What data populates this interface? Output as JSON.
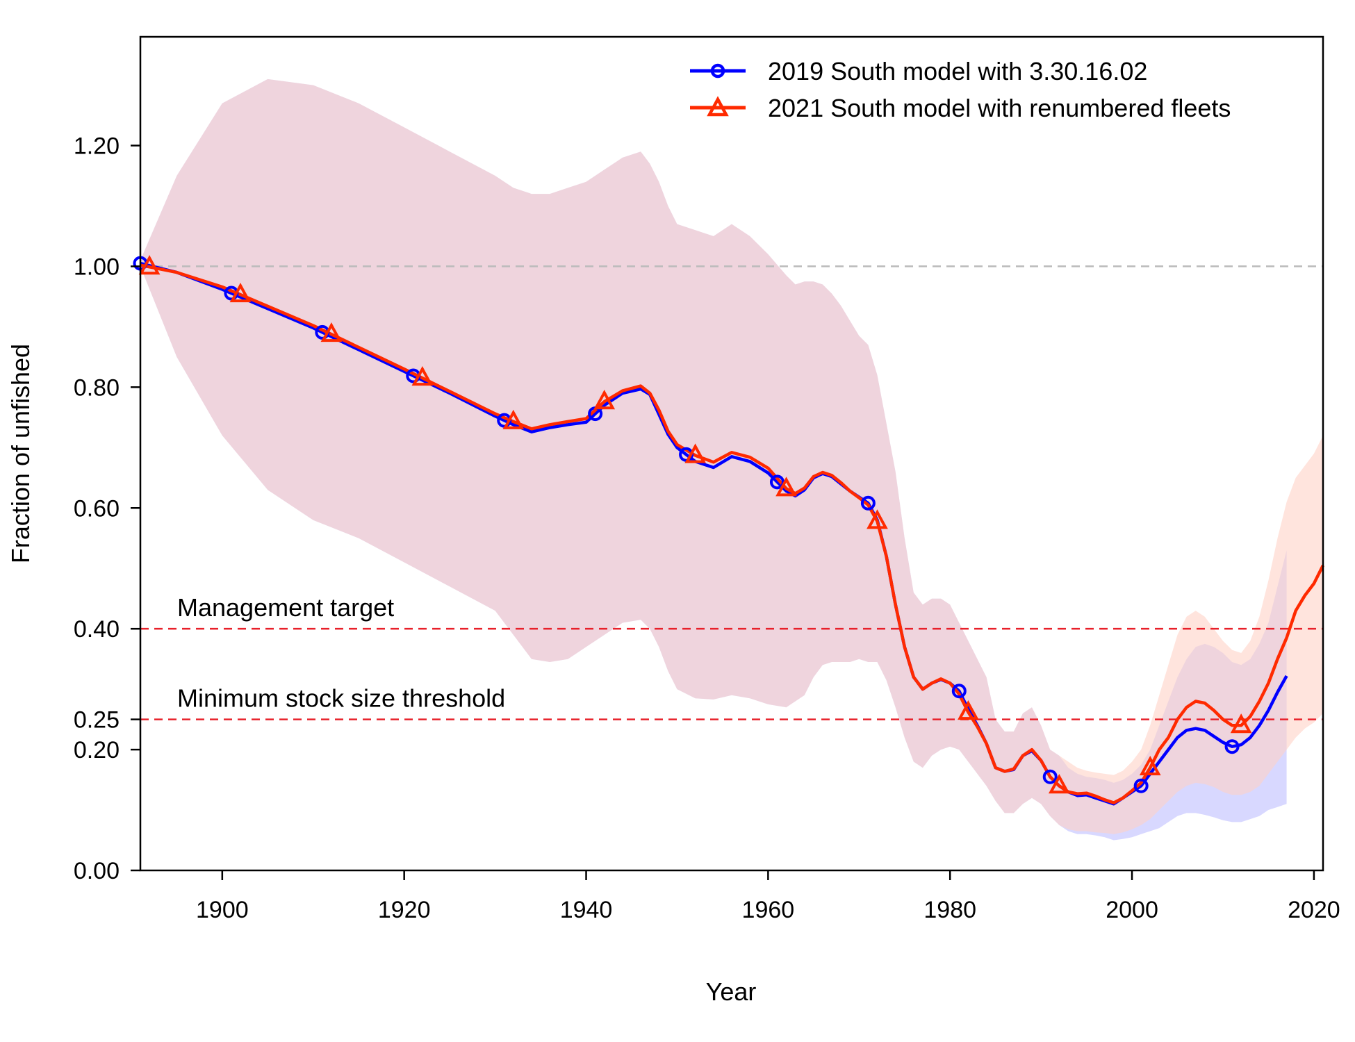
{
  "chart_data": {
    "type": "line",
    "xlabel": "Year",
    "ylabel": "Fraction of unfished",
    "xlim": [
      1891,
      2021
    ],
    "ylim": [
      0,
      1.38
    ],
    "x_ticks": [
      1900,
      1920,
      1940,
      1960,
      1980,
      2000,
      2020
    ],
    "y_ticks": [
      0.0,
      0.2,
      0.25,
      0.4,
      0.6,
      0.8,
      1.0,
      1.2
    ],
    "y_tick_labels": [
      "0.00",
      "0.20",
      "0.25",
      "0.40",
      "0.60",
      "0.80",
      "1.00",
      "1.20"
    ],
    "legend_position": "top-right",
    "grid": false,
    "reference_lines": [
      {
        "y": 1.0,
        "color": "#bbbbbb",
        "style": "dashed",
        "label": ""
      },
      {
        "y": 0.4,
        "color": "#e8202a",
        "style": "dashed",
        "label": "Management target"
      },
      {
        "y": 0.25,
        "color": "#e8202a",
        "style": "dashed",
        "label": "Minimum stock size threshold"
      }
    ],
    "series": [
      {
        "name": "2019 South model with 3.30.16.02",
        "color": "#0000ff",
        "band_color": "#b8b8ff",
        "marker": "circle",
        "marker_years": [
          1891,
          1901,
          1911,
          1921,
          1931,
          1941,
          1951,
          1961,
          1971,
          1981,
          1991,
          2001,
          2011
        ],
        "x": [
          1891,
          1895,
          1900,
          1905,
          1910,
          1915,
          1920,
          1925,
          1930,
          1932,
          1934,
          1936,
          1938,
          1940,
          1942,
          1944,
          1946,
          1947,
          1948,
          1949,
          1950,
          1952,
          1954,
          1956,
          1958,
          1960,
          1962,
          1963,
          1964,
          1965,
          1966,
          1967,
          1968,
          1969,
          1970,
          1971,
          1972,
          1973,
          1974,
          1975,
          1976,
          1977,
          1978,
          1979,
          1980,
          1981,
          1982,
          1983,
          1984,
          1985,
          1986,
          1987,
          1988,
          1989,
          1990,
          1991,
          1992,
          1993,
          1994,
          1995,
          1996,
          1997,
          1998,
          1999,
          2000,
          2001,
          2002,
          2003,
          2004,
          2005,
          2006,
          2007,
          2008,
          2009,
          2010,
          2011,
          2012,
          2013,
          2014,
          2015,
          2016,
          2017
        ],
        "y": [
          1.005,
          0.99,
          0.962,
          0.93,
          0.898,
          0.862,
          0.826,
          0.79,
          0.752,
          0.738,
          0.726,
          0.733,
          0.738,
          0.742,
          0.77,
          0.79,
          0.797,
          0.788,
          0.755,
          0.722,
          0.7,
          0.677,
          0.667,
          0.685,
          0.677,
          0.658,
          0.628,
          0.62,
          0.63,
          0.65,
          0.657,
          0.652,
          0.64,
          0.628,
          0.618,
          0.608,
          0.58,
          0.52,
          0.44,
          0.37,
          0.32,
          0.3,
          0.31,
          0.316,
          0.31,
          0.297,
          0.267,
          0.24,
          0.21,
          0.17,
          0.164,
          0.167,
          0.19,
          0.198,
          0.182,
          0.155,
          0.14,
          0.13,
          0.124,
          0.125,
          0.12,
          0.115,
          0.11,
          0.12,
          0.13,
          0.14,
          0.16,
          0.18,
          0.2,
          0.22,
          0.232,
          0.235,
          0.232,
          0.222,
          0.212,
          0.205,
          0.208,
          0.22,
          0.24,
          0.265,
          0.295,
          0.322
        ],
        "lower": [
          1.0,
          0.85,
          0.72,
          0.63,
          0.58,
          0.55,
          0.51,
          0.47,
          0.43,
          0.39,
          0.35,
          0.345,
          0.35,
          0.37,
          0.39,
          0.41,
          0.415,
          0.4,
          0.37,
          0.33,
          0.3,
          0.285,
          0.283,
          0.29,
          0.285,
          0.275,
          0.27,
          0.28,
          0.29,
          0.32,
          0.34,
          0.345,
          0.345,
          0.345,
          0.35,
          0.345,
          0.345,
          0.315,
          0.27,
          0.22,
          0.18,
          0.17,
          0.19,
          0.2,
          0.205,
          0.2,
          0.18,
          0.16,
          0.14,
          0.115,
          0.095,
          0.095,
          0.11,
          0.12,
          0.11,
          0.09,
          0.075,
          0.065,
          0.06,
          0.06,
          0.058,
          0.055,
          0.05,
          0.052,
          0.055,
          0.06,
          0.065,
          0.07,
          0.08,
          0.09,
          0.095,
          0.095,
          0.092,
          0.088,
          0.083,
          0.08,
          0.08,
          0.085,
          0.09,
          0.1,
          0.105,
          0.11
        ],
        "upper": [
          1.01,
          1.15,
          1.27,
          1.31,
          1.3,
          1.27,
          1.23,
          1.19,
          1.15,
          1.13,
          1.12,
          1.12,
          1.13,
          1.14,
          1.16,
          1.18,
          1.19,
          1.17,
          1.14,
          1.1,
          1.07,
          1.06,
          1.05,
          1.07,
          1.05,
          1.02,
          0.985,
          0.97,
          0.975,
          0.975,
          0.97,
          0.955,
          0.935,
          0.91,
          0.885,
          0.87,
          0.82,
          0.74,
          0.66,
          0.55,
          0.46,
          0.44,
          0.45,
          0.45,
          0.44,
          0.41,
          0.38,
          0.35,
          0.32,
          0.25,
          0.23,
          0.23,
          0.26,
          0.27,
          0.24,
          0.2,
          0.19,
          0.17,
          0.16,
          0.155,
          0.153,
          0.15,
          0.145,
          0.15,
          0.16,
          0.175,
          0.2,
          0.24,
          0.28,
          0.32,
          0.35,
          0.37,
          0.375,
          0.37,
          0.36,
          0.345,
          0.34,
          0.35,
          0.375,
          0.41,
          0.47,
          0.53
        ]
      },
      {
        "name": "2021 South model with renumbered fleets",
        "color": "#ff2a00",
        "band_color": "#ffd2c6",
        "marker": "triangle",
        "marker_years": [
          1892,
          1902,
          1912,
          1922,
          1932,
          1942,
          1952,
          1962,
          1972,
          1982,
          1992,
          2002,
          2012
        ],
        "x": [
          1891,
          1895,
          1900,
          1905,
          1910,
          1915,
          1920,
          1925,
          1930,
          1932,
          1934,
          1936,
          1938,
          1940,
          1942,
          1944,
          1946,
          1947,
          1948,
          1949,
          1950,
          1952,
          1954,
          1956,
          1958,
          1960,
          1962,
          1963,
          1964,
          1965,
          1966,
          1967,
          1968,
          1969,
          1970,
          1971,
          1972,
          1973,
          1974,
          1975,
          1976,
          1977,
          1978,
          1979,
          1980,
          1981,
          1982,
          1983,
          1984,
          1985,
          1986,
          1987,
          1988,
          1989,
          1990,
          1991,
          1992,
          1993,
          1994,
          1995,
          1996,
          1997,
          1998,
          1999,
          2000,
          2001,
          2002,
          2003,
          2004,
          2005,
          2006,
          2007,
          2008,
          2009,
          2010,
          2011,
          2012,
          2013,
          2014,
          2015,
          2016,
          2017,
          2018,
          2019,
          2020,
          2021
        ],
        "y": [
          1.002,
          0.99,
          0.966,
          0.934,
          0.902,
          0.866,
          0.83,
          0.793,
          0.756,
          0.743,
          0.731,
          0.738,
          0.743,
          0.748,
          0.776,
          0.794,
          0.802,
          0.79,
          0.762,
          0.727,
          0.705,
          0.687,
          0.676,
          0.692,
          0.684,
          0.666,
          0.632,
          0.624,
          0.633,
          0.652,
          0.659,
          0.654,
          0.642,
          0.628,
          0.617,
          0.605,
          0.578,
          0.52,
          0.44,
          0.37,
          0.32,
          0.3,
          0.31,
          0.317,
          0.31,
          0.292,
          0.262,
          0.238,
          0.21,
          0.17,
          0.164,
          0.168,
          0.19,
          0.2,
          0.182,
          0.155,
          0.14,
          0.13,
          0.127,
          0.128,
          0.123,
          0.117,
          0.112,
          0.12,
          0.132,
          0.145,
          0.17,
          0.2,
          0.22,
          0.25,
          0.27,
          0.28,
          0.277,
          0.265,
          0.25,
          0.24,
          0.24,
          0.255,
          0.28,
          0.31,
          0.35,
          0.385,
          0.43,
          0.455,
          0.475,
          0.505
        ],
        "lower": [
          1.0,
          0.85,
          0.72,
          0.63,
          0.58,
          0.55,
          0.51,
          0.47,
          0.43,
          0.39,
          0.35,
          0.345,
          0.35,
          0.37,
          0.39,
          0.41,
          0.415,
          0.4,
          0.37,
          0.33,
          0.3,
          0.285,
          0.283,
          0.29,
          0.285,
          0.275,
          0.27,
          0.28,
          0.29,
          0.32,
          0.34,
          0.345,
          0.345,
          0.345,
          0.35,
          0.345,
          0.345,
          0.315,
          0.27,
          0.22,
          0.18,
          0.17,
          0.19,
          0.2,
          0.205,
          0.2,
          0.18,
          0.16,
          0.14,
          0.115,
          0.095,
          0.095,
          0.11,
          0.12,
          0.11,
          0.09,
          0.075,
          0.068,
          0.065,
          0.065,
          0.063,
          0.062,
          0.06,
          0.063,
          0.068,
          0.075,
          0.085,
          0.1,
          0.115,
          0.13,
          0.14,
          0.145,
          0.143,
          0.138,
          0.13,
          0.125,
          0.125,
          0.13,
          0.14,
          0.16,
          0.18,
          0.2,
          0.22,
          0.235,
          0.245,
          0.26
        ],
        "upper": [
          1.01,
          1.15,
          1.27,
          1.31,
          1.3,
          1.27,
          1.23,
          1.19,
          1.15,
          1.13,
          1.12,
          1.12,
          1.13,
          1.14,
          1.16,
          1.18,
          1.19,
          1.17,
          1.14,
          1.1,
          1.07,
          1.06,
          1.05,
          1.07,
          1.05,
          1.02,
          0.985,
          0.97,
          0.975,
          0.975,
          0.97,
          0.955,
          0.935,
          0.91,
          0.885,
          0.87,
          0.82,
          0.74,
          0.66,
          0.55,
          0.46,
          0.44,
          0.45,
          0.45,
          0.44,
          0.41,
          0.38,
          0.35,
          0.32,
          0.25,
          0.23,
          0.23,
          0.26,
          0.27,
          0.24,
          0.2,
          0.19,
          0.18,
          0.17,
          0.165,
          0.162,
          0.16,
          0.158,
          0.165,
          0.18,
          0.2,
          0.24,
          0.29,
          0.34,
          0.39,
          0.42,
          0.43,
          0.42,
          0.4,
          0.38,
          0.365,
          0.36,
          0.38,
          0.42,
          0.48,
          0.55,
          0.61,
          0.65,
          0.67,
          0.69,
          0.72
        ]
      }
    ]
  }
}
